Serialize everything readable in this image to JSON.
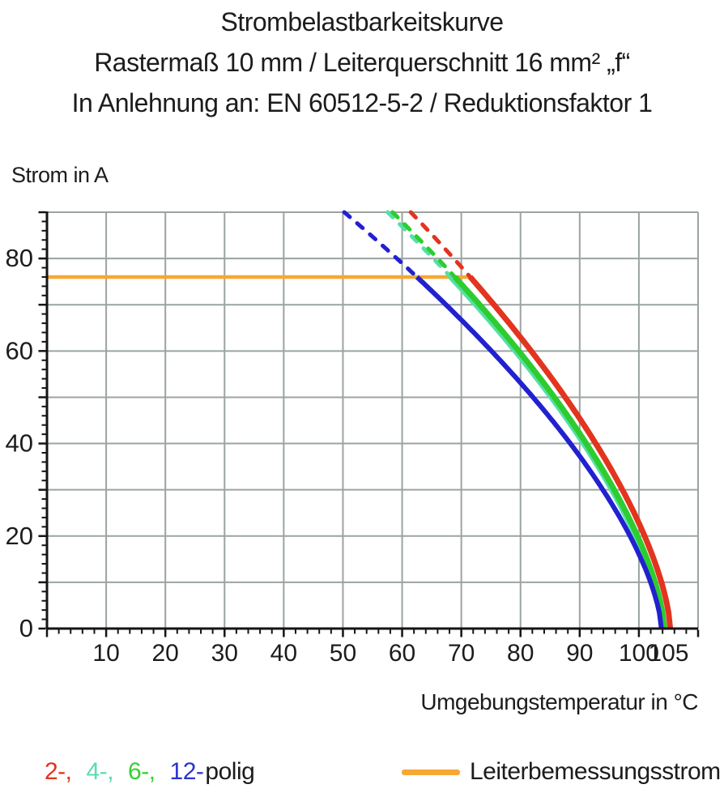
{
  "title": {
    "line1": "Strombelastbarkeitskurve",
    "line2": "Rastermaß 10 mm / Leiterquerschnitt 16 mm² „f“",
    "line3": "In Anlehnung an: EN 60512-5-2 / Reduktionsfaktor 1"
  },
  "y_axis_title": "Strom in A",
  "x_axis_title": "Umgebungstemperatur in °C",
  "legend": {
    "series_tokens": [
      {
        "text": "2-,",
        "color": "#e2341f",
        "series": "2-polig"
      },
      {
        "text": "4-,",
        "color": "#57dfae",
        "series": "4-polig"
      },
      {
        "text": "6-,",
        "color": "#33d033",
        "series": "6-polig"
      },
      {
        "text": "12-",
        "color": "#2a35cf",
        "series": "12-polig"
      },
      {
        "text": "polig",
        "color": "#1c1c1c",
        "series": ""
      }
    ],
    "rated_current_label": "Leiterbemessungsstrom",
    "rated_current_color": "#f7a733"
  },
  "chart_data": {
    "type": "line",
    "title": "Strombelastbarkeitskurve",
    "xlabel": "Umgebungstemperatur in °C",
    "ylabel": "Strom in A",
    "xlim": [
      0,
      110
    ],
    "ylim": [
      0,
      90
    ],
    "grid_step": 10,
    "minor_tick_step": 2,
    "x_tick_labels": [
      10,
      20,
      30,
      40,
      50,
      60,
      70,
      80,
      90,
      100,
      105
    ],
    "y_tick_labels": [
      0,
      20,
      40,
      60,
      80
    ],
    "grid_color": "#9ba3a3",
    "axis_color": "#141414",
    "rated_line": {
      "name": "Leiterbemessungsstrom",
      "color": "#f7a733",
      "current_A": 76,
      "x_start_C": 0,
      "x_end_C": 71.5
    },
    "curve_model": {
      "formula": "I(T) = 76 * ((t_end - T) / (t_end - t_cross)) ^ 0.65",
      "exponent": 0.65,
      "dashed_above_A": 76,
      "plot_top_A": 90
    },
    "series": [
      {
        "name": "4-polig",
        "color": "#55dfa8",
        "t_cross_76A_C": 68.2,
        "t_zero_C": 104.0,
        "line_width": 7,
        "sample_points": [
          [
            68.2,
            76
          ],
          [
            80,
            59
          ],
          [
            90,
            41
          ],
          [
            100,
            18
          ],
          [
            104,
            0
          ]
        ]
      },
      {
        "name": "6-polig",
        "color": "#2ecc2e",
        "t_cross_76A_C": 68.9,
        "t_zero_C": 104.3,
        "line_width": 7,
        "sample_points": [
          [
            68.9,
            76
          ],
          [
            80,
            60
          ],
          [
            90,
            42
          ],
          [
            100,
            19
          ],
          [
            104.3,
            0
          ]
        ]
      },
      {
        "name": "12-polig",
        "color": "#2121d0",
        "t_cross_76A_C": 62.5,
        "t_zero_C": 103.8,
        "line_width": 6,
        "sample_points": [
          [
            62.5,
            76
          ],
          [
            70,
            67
          ],
          [
            80,
            53
          ],
          [
            90,
            37
          ],
          [
            100,
            16
          ],
          [
            103.8,
            0
          ]
        ]
      },
      {
        "name": "2-polig",
        "color": "#e2341f",
        "t_cross_76A_C": 71.5,
        "t_zero_C": 105.3,
        "line_width": 7,
        "sample_points": [
          [
            71.5,
            76
          ],
          [
            80,
            63
          ],
          [
            90,
            45
          ],
          [
            100,
            23
          ],
          [
            105.3,
            0
          ]
        ]
      }
    ]
  }
}
